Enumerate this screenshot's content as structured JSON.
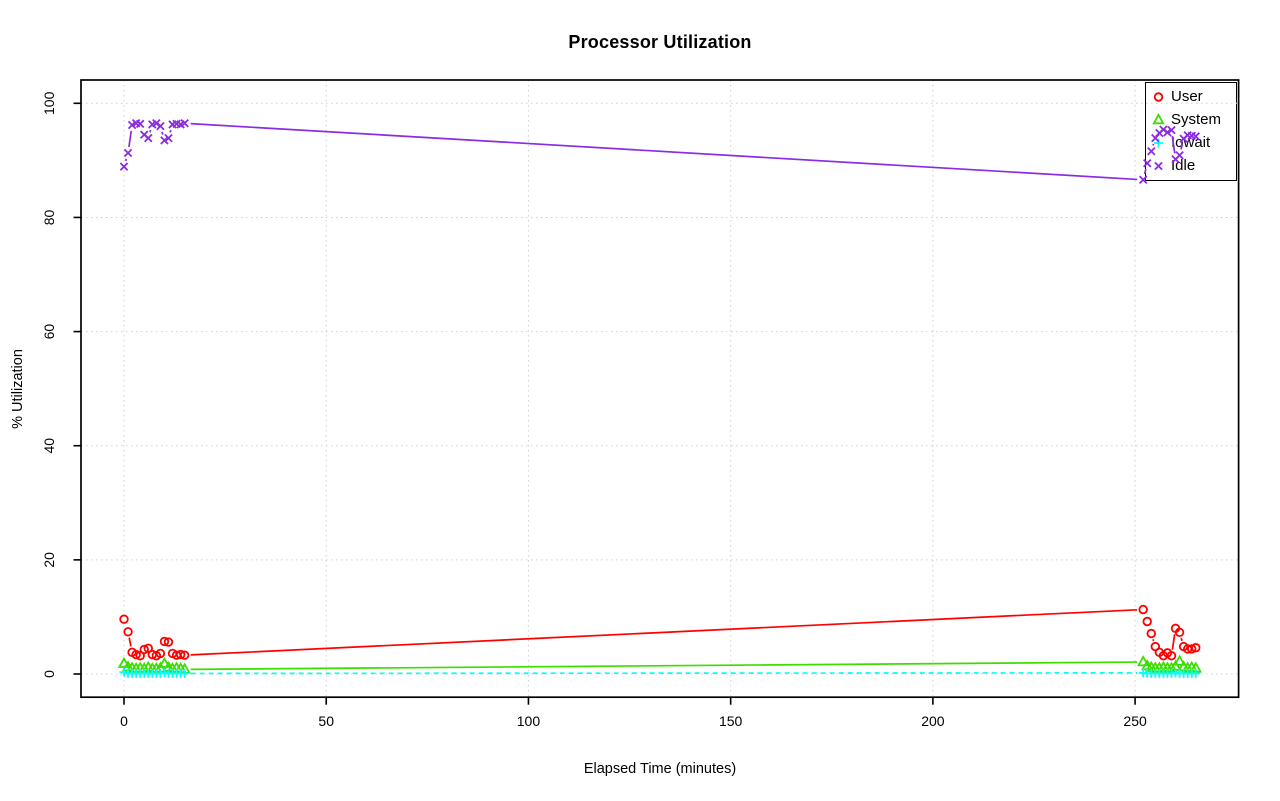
{
  "title": "Processor Utilization",
  "xlabel": "Elapsed Time (minutes)",
  "ylabel": "% Utilization",
  "legend": [
    {
      "label": "User",
      "symbol": "circle",
      "color": "#FF0000"
    },
    {
      "label": "System",
      "symbol": "triangle",
      "color": "#3CDE00"
    },
    {
      "label": "Iowait",
      "symbol": "plus",
      "color": "#00FFFF"
    },
    {
      "label": "Idle",
      "symbol": "x",
      "color": "#8B2BE2"
    }
  ],
  "chart_data": {
    "type": "line",
    "title": "Processor Utilization",
    "xlabel": "Elapsed Time (minutes)",
    "ylabel": "% Utilization",
    "x_ticks": [
      0,
      50,
      100,
      150,
      200,
      250
    ],
    "y_ticks": [
      0,
      20,
      40,
      60,
      80,
      100
    ],
    "xlim": [
      -11,
      276
    ],
    "ylim": [
      -4,
      104
    ],
    "grid": "dotted lightgray, on",
    "legend_position": "topright",
    "marker_style": "points-with-broken-line-segments (R type='b')",
    "x": [
      0,
      1,
      2,
      3,
      4,
      5,
      6,
      7,
      8,
      9,
      10,
      11,
      12,
      13,
      14,
      15,
      252,
      253,
      254,
      255,
      256,
      257,
      258,
      259,
      260,
      261,
      262,
      263,
      264,
      265
    ],
    "series": [
      {
        "name": "User",
        "color": "#FF0000",
        "symbol": "circle",
        "line": "solid",
        "values": [
          9.6,
          7.4,
          3.8,
          3.4,
          3.2,
          4.3,
          4.5,
          3.4,
          3.2,
          3.6,
          5.7,
          5.6,
          3.6,
          3.3,
          3.4,
          3.3,
          11.3,
          9.2,
          7.1,
          4.8,
          3.8,
          3.2,
          3.7,
          3.2,
          8.0,
          7.3,
          4.8,
          4.4,
          4.4,
          4.6
        ]
      },
      {
        "name": "System",
        "color": "#3CDE00",
        "symbol": "triangle",
        "line": "solid",
        "values": [
          1.8,
          1.2,
          1.0,
          0.9,
          1.0,
          0.9,
          1.1,
          0.9,
          0.9,
          1.0,
          1.8,
          1.1,
          0.9,
          1.0,
          0.9,
          0.8,
          2.1,
          1.4,
          1.1,
          1.0,
          1.0,
          1.1,
          1.0,
          1.0,
          1.3,
          2.2,
          1.2,
          1.0,
          1.1,
          1.0
        ]
      },
      {
        "name": "Iowait",
        "color": "#00FFFF",
        "symbol": "plus",
        "line": "dashed",
        "values": [
          0.3,
          0.1,
          0.1,
          0.1,
          0.1,
          0.1,
          0.1,
          0.1,
          0.1,
          0.1,
          0.2,
          0.1,
          0.1,
          0.1,
          0.1,
          0.1,
          0.2,
          0.1,
          0.1,
          0.1,
          0.1,
          0.1,
          0.1,
          0.1,
          0.2,
          0.1,
          0.1,
          0.1,
          0.1,
          0.1
        ]
      },
      {
        "name": "Idle",
        "color": "#8B2BE2",
        "symbol": "x",
        "line": "solid",
        "values": [
          88.9,
          91.3,
          96.2,
          96.5,
          96.4,
          94.5,
          93.9,
          96.3,
          96.5,
          96.0,
          93.5,
          93.9,
          96.3,
          96.4,
          96.3,
          96.5,
          86.6,
          89.5,
          91.6,
          93.9,
          94.8,
          95.4,
          94.9,
          95.3,
          90.2,
          90.9,
          93.8,
          94.4,
          94.3,
          94.2
        ]
      }
    ]
  }
}
